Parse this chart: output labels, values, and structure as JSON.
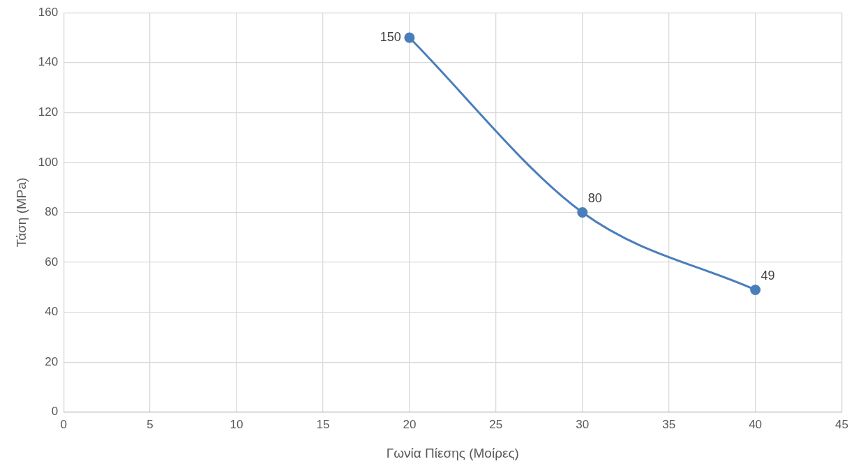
{
  "chart_data": {
    "type": "line",
    "xlabel": "Γωνία Πίεσης (Μοίρες)",
    "ylabel": "Τάση (MPa)",
    "x": [
      20,
      30,
      40
    ],
    "series": [
      {
        "color": "#4a7ebb",
        "values": [
          150,
          80,
          49
        ]
      }
    ],
    "xlim": [
      0,
      45
    ],
    "xticks": [
      0,
      5,
      10,
      15,
      20,
      25,
      30,
      35,
      40,
      45
    ],
    "ylim": [
      0,
      160
    ],
    "yticks": [
      0,
      20,
      40,
      60,
      80,
      100,
      120,
      140,
      160
    ],
    "grid": true,
    "legend": false,
    "marker": "circle",
    "line_style": "solid",
    "data_labels": true
  }
}
